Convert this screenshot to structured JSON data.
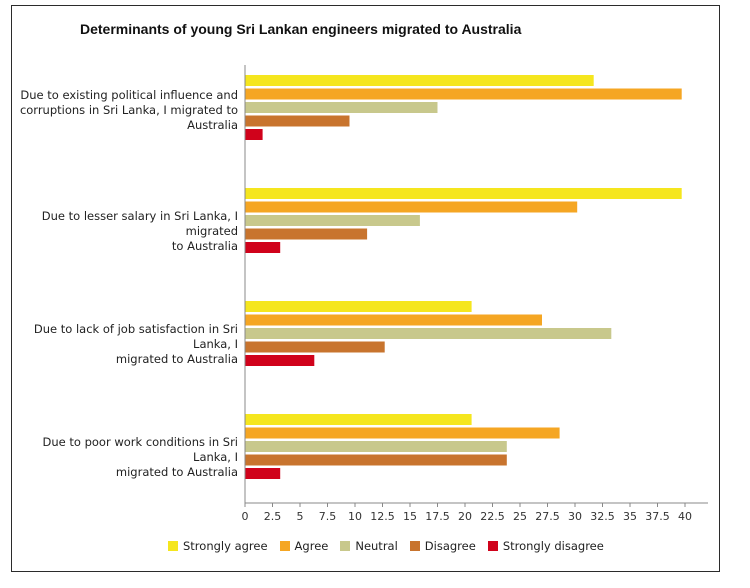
{
  "chart_data": {
    "type": "bar",
    "orientation": "horizontal",
    "title": "Determinants of young Sri Lankan engineers migrated to Australia",
    "categories": [
      [
        "Due to existing political influence and",
        "corruptions in Sri Lanka, I migrated to",
        "Australia"
      ],
      [
        "Due to lesser salary in Sri Lanka, I migrated",
        "to Australia"
      ],
      [
        "Due to lack of job satisfaction in Sri Lanka, I",
        "migrated to Australia"
      ],
      [
        "Due to poor work conditions in Sri Lanka, I",
        "migrated to Australia"
      ]
    ],
    "series": [
      {
        "name": "Strongly agree",
        "color": "#f5e61e",
        "values": [
          31.7,
          39.7,
          20.6,
          20.6
        ]
      },
      {
        "name": "Agree",
        "color": "#f5a623",
        "values": [
          39.7,
          30.2,
          27.0,
          28.6
        ]
      },
      {
        "name": "Neutral",
        "color": "#c8c88c",
        "values": [
          17.5,
          15.9,
          33.3,
          23.8
        ]
      },
      {
        "name": "Disagree",
        "color": "#c8742e",
        "values": [
          9.5,
          11.1,
          12.7,
          23.8
        ]
      },
      {
        "name": "Strongly disagree",
        "color": "#d0021b",
        "values": [
          1.6,
          3.2,
          6.3,
          3.2
        ]
      }
    ],
    "xlim": [
      0,
      40
    ],
    "xticks": [
      "0",
      "2.5",
      "5",
      "7.5",
      "10",
      "12.5",
      "15",
      "17.5",
      "20",
      "22.5",
      "25",
      "27.5",
      "30",
      "32.5",
      "35",
      "37.5",
      "40"
    ],
    "xlabel": "",
    "ylabel": "",
    "grid": false,
    "legend": "bottom"
  }
}
